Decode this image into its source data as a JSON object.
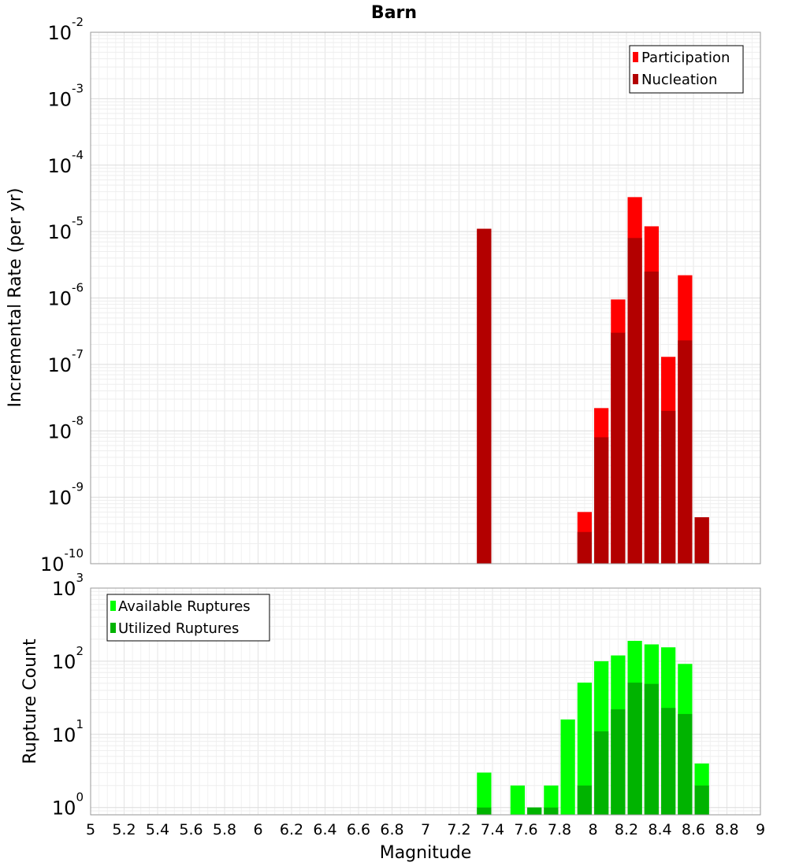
{
  "chart_data": {
    "title": "Barn",
    "xlabel": "Magnitude",
    "xlim": [
      5,
      9
    ],
    "x_ticks": [
      "5",
      "5.2",
      "5.4",
      "5.6",
      "5.8",
      "6",
      "6.2",
      "6.4",
      "6.6",
      "6.8",
      "7",
      "7.2",
      "7.4",
      "7.6",
      "7.8",
      "8",
      "8.2",
      "8.4",
      "8.6",
      "8.8",
      "9"
    ],
    "bin_width": 0.1,
    "panels": [
      {
        "type": "bar",
        "ylabel": "Incremental Rate (per yr)",
        "yscale": "log",
        "ylim_exp": [
          -10,
          -2
        ],
        "y_ticks": [
          {
            "base": "10",
            "exp": "-2"
          },
          {
            "base": "10",
            "exp": "-3"
          },
          {
            "base": "10",
            "exp": "-4"
          },
          {
            "base": "10",
            "exp": "-5"
          },
          {
            "base": "10",
            "exp": "-6"
          },
          {
            "base": "10",
            "exp": "-7"
          },
          {
            "base": "10",
            "exp": "-8"
          },
          {
            "base": "10",
            "exp": "-9"
          },
          {
            "base": "10",
            "exp": "-10"
          }
        ],
        "legend_position": "top-right",
        "series": [
          {
            "name": "Participation",
            "color": "#ff0000",
            "x": [
              7.35,
              7.95,
              8.05,
              8.15,
              8.25,
              8.35,
              8.45,
              8.55,
              8.65
            ],
            "values": [
              1.1e-05,
              6e-10,
              2.2e-08,
              9.5e-07,
              3.3e-05,
              1.2e-05,
              1.3e-07,
              2.2e-06,
              5e-10
            ]
          },
          {
            "name": "Nucleation",
            "color": "#b30000",
            "x": [
              7.35,
              7.95,
              8.05,
              8.15,
              8.25,
              8.35,
              8.45,
              8.55,
              8.65
            ],
            "values": [
              1.1e-05,
              3e-10,
              8e-09,
              3e-07,
              8e-06,
              2.5e-06,
              2e-08,
              2.3e-07,
              5e-10
            ]
          }
        ]
      },
      {
        "type": "bar",
        "ylabel": "Rupture Count",
        "yscale": "log",
        "ylim_exp": [
          -0.1,
          3
        ],
        "y_ticks": [
          {
            "base": "10",
            "exp": "3"
          },
          {
            "base": "10",
            "exp": "2"
          },
          {
            "base": "10",
            "exp": "1"
          },
          {
            "base": "10",
            "exp": "0"
          }
        ],
        "legend_position": "top-left",
        "series": [
          {
            "name": "Available Ruptures",
            "color": "#00ff00",
            "x": [
              7.35,
              7.55,
              7.65,
              7.75,
              7.85,
              7.95,
              8.05,
              8.15,
              8.25,
              8.35,
              8.45,
              8.55,
              8.65
            ],
            "values": [
              3,
              2,
              1,
              2,
              16,
              51,
              100,
              120,
              190,
              170,
              155,
              92,
              4
            ]
          },
          {
            "name": "Utilized Ruptures",
            "color": "#00b300",
            "x": [
              7.35,
              7.65,
              7.75,
              7.95,
              8.05,
              8.15,
              8.25,
              8.35,
              8.45,
              8.55,
              8.65
            ],
            "values": [
              1,
              1,
              1,
              2,
              11,
              22,
              51,
              49,
              23,
              19,
              2
            ]
          }
        ]
      }
    ]
  }
}
